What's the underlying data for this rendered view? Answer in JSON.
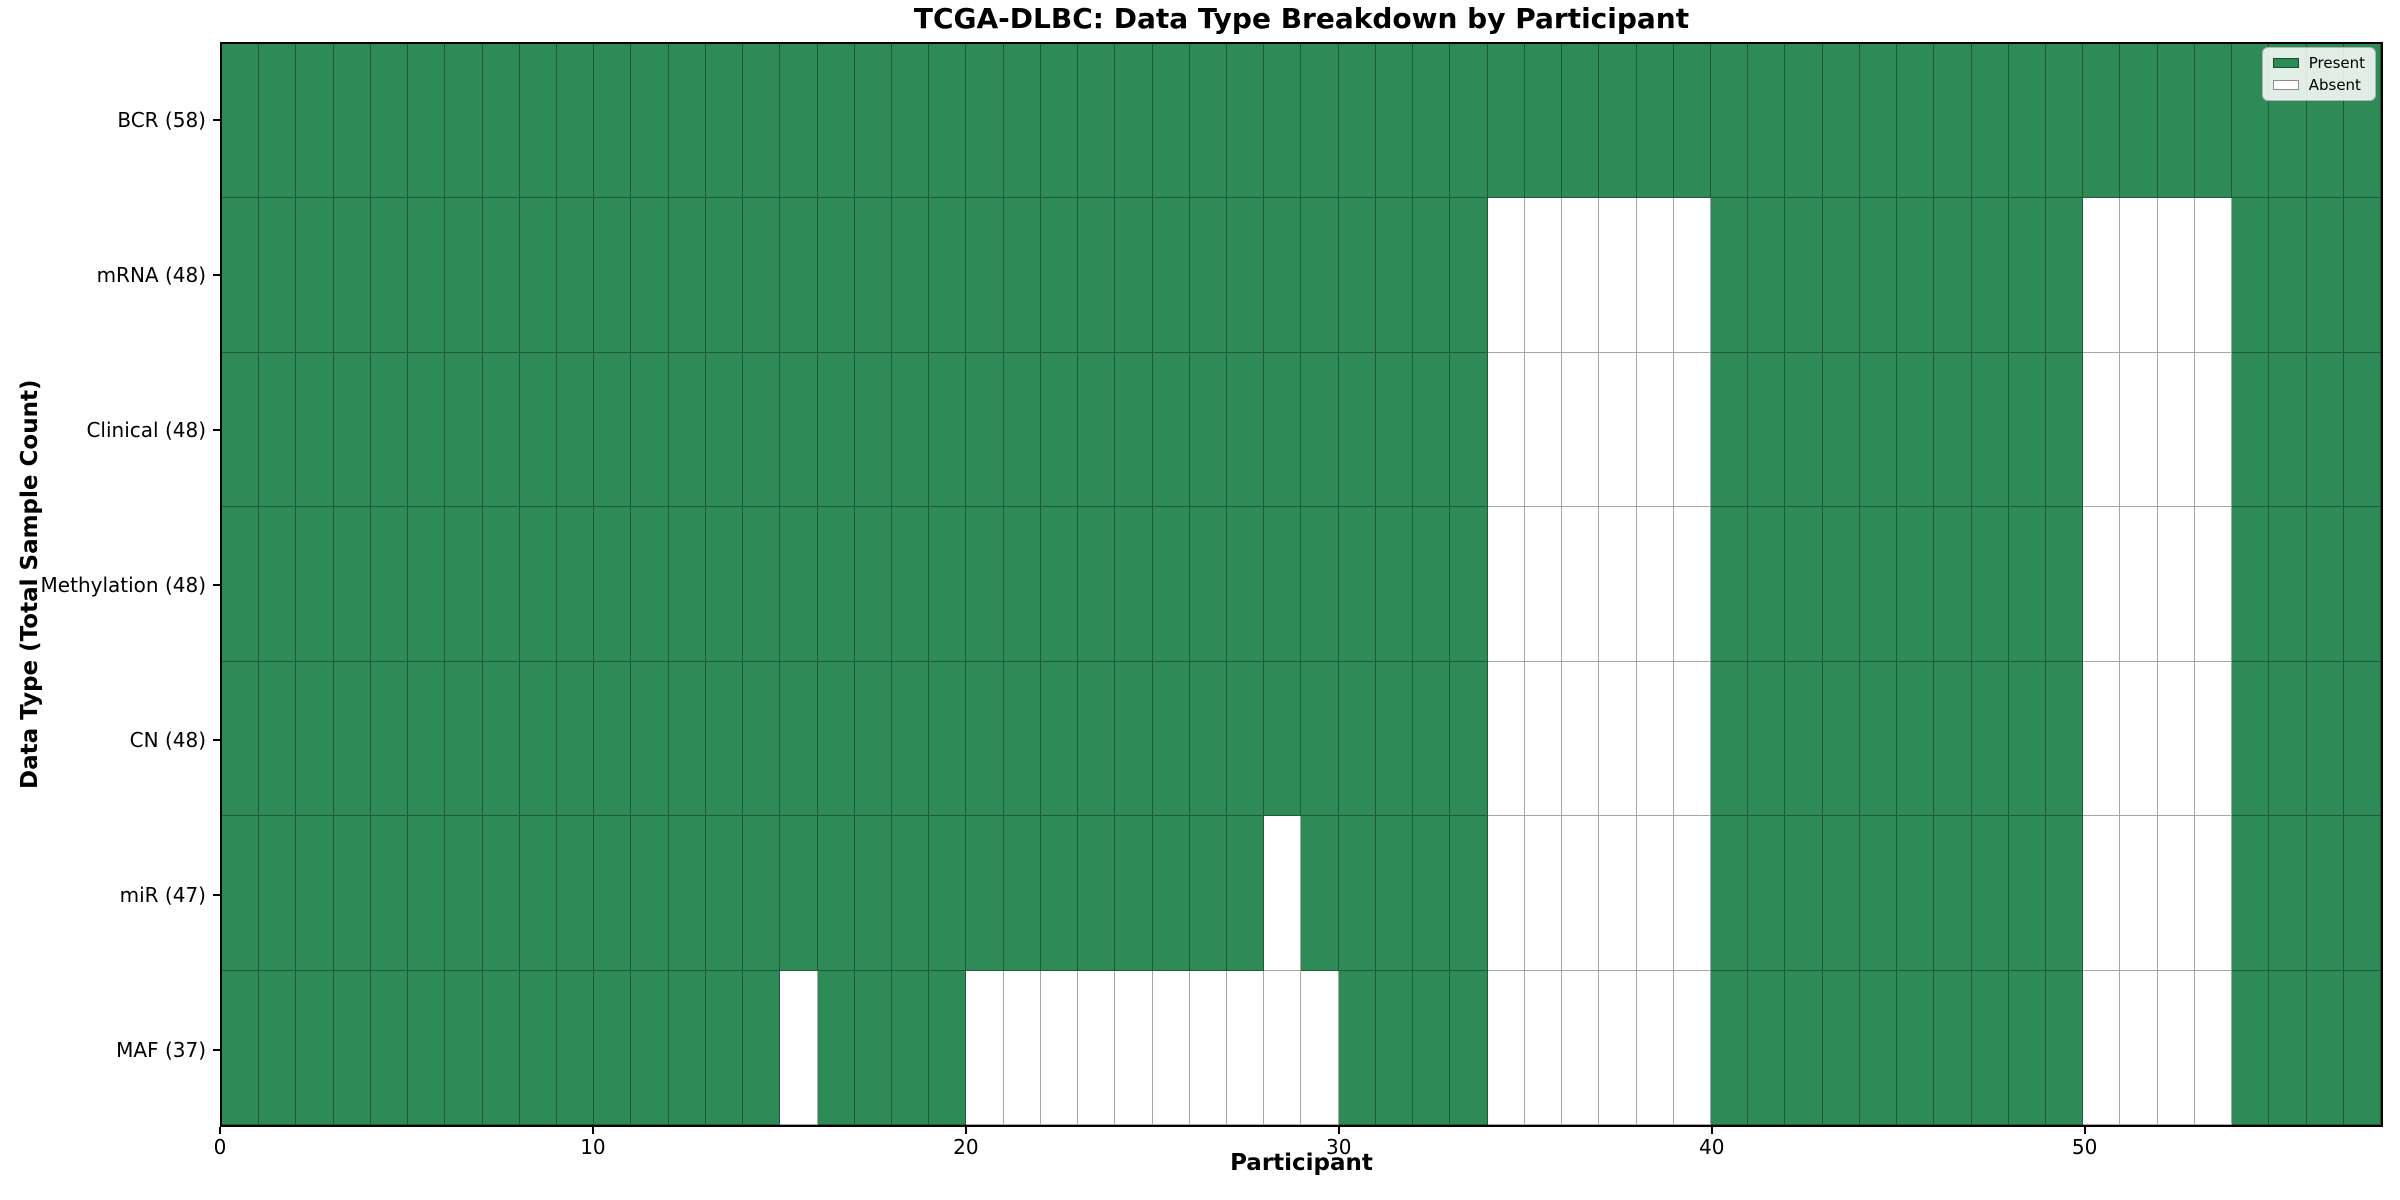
{
  "chart_data": {
    "type": "heatmap",
    "title": "TCGA-DLBC: Data Type Breakdown by Participant",
    "xlabel": "Participant",
    "ylabel": "Data Type (Total Sample Count)",
    "x_range": [
      0,
      58
    ],
    "n_participants": 58,
    "x_ticks": [
      "0",
      "10",
      "20",
      "30",
      "40",
      "50"
    ],
    "x_tick_values": [
      0,
      10,
      20,
      30,
      40,
      50
    ],
    "grid": true,
    "colors": {
      "present": "#2E8B57",
      "absent": "#ffffff",
      "cell_edge": "rgba(0,0,0,0.35)",
      "frame": "#000000"
    },
    "legend": {
      "position": "upper-right",
      "entries": [
        {
          "label": "Present",
          "color": "#2E8B57"
        },
        {
          "label": "Absent",
          "color": "#ffffff"
        }
      ]
    },
    "rows": [
      {
        "label": "BCR (58)",
        "data_type": "BCR",
        "present_count": 58,
        "absent_participants": []
      },
      {
        "label": "mRNA (48)",
        "data_type": "mRNA",
        "present_count": 48,
        "absent_participants": [
          34,
          35,
          36,
          37,
          38,
          39,
          50,
          51,
          52,
          53
        ]
      },
      {
        "label": "Clinical (48)",
        "data_type": "Clinical",
        "present_count": 48,
        "absent_participants": [
          34,
          35,
          36,
          37,
          38,
          39,
          50,
          51,
          52,
          53
        ]
      },
      {
        "label": "Methylation (48)",
        "data_type": "Methylation",
        "present_count": 48,
        "absent_participants": [
          34,
          35,
          36,
          37,
          38,
          39,
          50,
          51,
          52,
          53
        ]
      },
      {
        "label": "CN (48)",
        "data_type": "CN",
        "present_count": 48,
        "absent_participants": [
          34,
          35,
          36,
          37,
          38,
          39,
          50,
          51,
          52,
          53
        ]
      },
      {
        "label": "miR (47)",
        "data_type": "miR",
        "present_count": 47,
        "absent_participants": [
          28,
          34,
          35,
          36,
          37,
          38,
          39,
          50,
          51,
          52,
          53
        ]
      },
      {
        "label": "MAF (37)",
        "data_type": "MAF",
        "present_count": 37,
        "absent_participants": [
          15,
          20,
          21,
          22,
          23,
          24,
          25,
          26,
          27,
          28,
          29,
          34,
          35,
          36,
          37,
          38,
          39,
          50,
          51,
          52,
          53
        ]
      }
    ]
  }
}
